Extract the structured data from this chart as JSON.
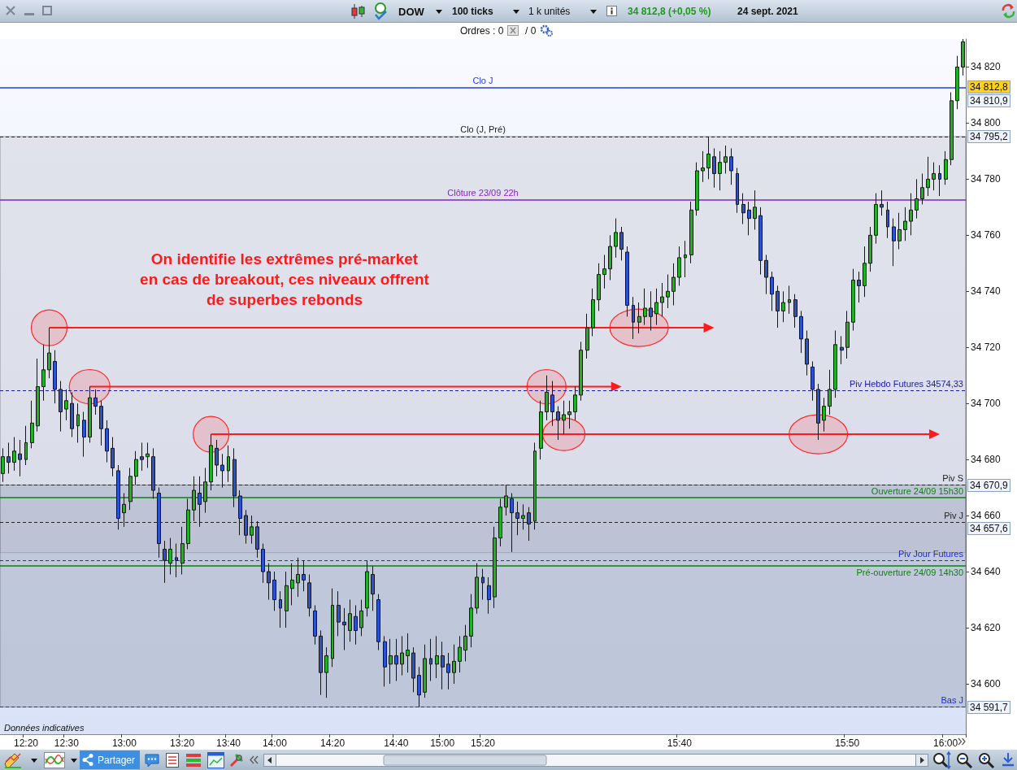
{
  "chart_data": {
    "type": "candlestick",
    "title": "DOW",
    "categories": [
      null,
      null,
      null,
      null,
      "12:20",
      null,
      null,
      null,
      null,
      null,
      null,
      "12:30",
      null,
      null,
      null,
      null,
      null,
      null,
      null,
      null,
      null,
      "13:00",
      null,
      null,
      null,
      null,
      null,
      null,
      null,
      null,
      null,
      "13:20",
      null,
      null,
      null,
      null,
      null,
      null,
      null,
      "13:40",
      null,
      null,
      null,
      null,
      null,
      null,
      null,
      "14:00",
      null,
      null,
      null,
      null,
      null,
      null,
      null,
      null,
      null,
      "14:20",
      null,
      null,
      null,
      null,
      null,
      null,
      null,
      null,
      null,
      null,
      "14:40",
      null,
      null,
      null,
      null,
      null,
      null,
      null,
      "15:00",
      null,
      null,
      null,
      null,
      null,
      null,
      "15:20",
      null,
      null,
      null,
      null,
      null,
      null,
      null,
      null,
      null,
      null,
      null,
      null,
      null,
      null,
      null,
      null,
      null,
      null,
      null,
      null,
      null,
      null,
      null,
      null,
      null,
      null,
      null,
      null,
      null,
      null,
      null,
      null,
      null,
      "15:40",
      null,
      null,
      null,
      null,
      null,
      null,
      null,
      null,
      null,
      null,
      null,
      null,
      null,
      null,
      null,
      null,
      null,
      null,
      null,
      null,
      null,
      null,
      null,
      null,
      null,
      null,
      null,
      null,
      "15:50",
      null,
      null,
      null,
      null,
      null,
      null,
      null,
      null,
      null,
      null,
      null,
      null,
      null,
      null,
      null,
      null,
      "16:00",
      null,
      null,
      null
    ],
    "ohlc": [
      [
        34675,
        34684,
        34672,
        34681
      ],
      [
        34681,
        34686,
        34675,
        34679
      ],
      [
        34679,
        34688,
        34676,
        34683
      ],
      [
        34682,
        34687,
        34674,
        34680
      ],
      [
        34680,
        34692,
        34678,
        34686
      ],
      [
        34686,
        34701,
        34684,
        34693
      ],
      [
        34692,
        34716,
        34690,
        34706
      ],
      [
        34706,
        34721,
        34701,
        34712
      ],
      [
        34712,
        34727,
        34709,
        34718
      ],
      [
        34715,
        34719,
        34700,
        34705
      ],
      [
        34705,
        34708,
        34690,
        34697
      ],
      [
        34698,
        34705,
        34694,
        34701
      ],
      [
        34700,
        34704,
        34688,
        34691
      ],
      [
        34692,
        34700,
        34686,
        34696
      ],
      [
        34694,
        34697,
        34681,
        34688
      ],
      [
        34688,
        34706,
        34686,
        34702
      ],
      [
        34702,
        34705,
        34696,
        34699
      ],
      [
        34699,
        34701,
        34685,
        34691
      ],
      [
        34691,
        34694,
        34679,
        34683
      ],
      [
        34684,
        34688,
        34674,
        34677
      ],
      [
        34676,
        34678,
        34655,
        34659
      ],
      [
        34661,
        34668,
        34656,
        34664
      ],
      [
        34665,
        34677,
        34662,
        34674
      ],
      [
        34674,
        34683,
        34671,
        34680
      ],
      [
        34681,
        34686,
        34676,
        34680
      ],
      [
        34681,
        34686,
        34677,
        34682
      ],
      [
        34681,
        34684,
        34666,
        34669
      ],
      [
        34668,
        34670,
        34645,
        34650
      ],
      [
        34648,
        34651,
        34636,
        34644
      ],
      [
        34643,
        34652,
        34639,
        34648
      ],
      [
        34645,
        34650,
        34638,
        34644
      ],
      [
        34643,
        34656,
        34639,
        34650
      ],
      [
        34650,
        34666,
        34648,
        34662
      ],
      [
        34662,
        34674,
        34658,
        34669
      ],
      [
        34668,
        34674,
        34656,
        34664
      ],
      [
        34665,
        34677,
        34661,
        34672
      ],
      [
        34672,
        34689,
        34669,
        34685
      ],
      [
        34684,
        34687,
        34674,
        34678
      ],
      [
        34678,
        34682,
        34670,
        34676
      ],
      [
        34676,
        34685,
        34672,
        34681
      ],
      [
        34680,
        34684,
        34663,
        34667
      ],
      [
        34667,
        34669,
        34653,
        34659
      ],
      [
        34660,
        34662,
        34650,
        34653
      ],
      [
        34653,
        34660,
        34650,
        34656
      ],
      [
        34656,
        34658,
        34645,
        34648
      ],
      [
        34648,
        34650,
        34636,
        34640
      ],
      [
        34640,
        34643,
        34630,
        34636
      ],
      [
        34637,
        34640,
        34626,
        34630
      ],
      [
        34630,
        34633,
        34620,
        34627
      ],
      [
        34626,
        34640,
        34620,
        34635
      ],
      [
        34634,
        34643,
        34628,
        34637
      ],
      [
        34636,
        34645,
        34631,
        34639
      ],
      [
        34639,
        34644,
        34633,
        34637
      ],
      [
        34636,
        34639,
        34624,
        34627
      ],
      [
        34626,
        34628,
        34614,
        34617
      ],
      [
        34617,
        34619,
        34596,
        34604
      ],
      [
        34604,
        34613,
        34595,
        34610
      ],
      [
        34609,
        34634,
        34606,
        34628
      ],
      [
        34628,
        34633,
        34617,
        34622
      ],
      [
        34622,
        34627,
        34612,
        34621
      ],
      [
        34619,
        34630,
        34615,
        34625
      ],
      [
        34624,
        34628,
        34614,
        34619
      ],
      [
        34620,
        34630,
        34617,
        34626
      ],
      [
        34627,
        34644,
        34624,
        34640
      ],
      [
        34639,
        34642,
        34626,
        34632
      ],
      [
        34630,
        34632,
        34612,
        34615
      ],
      [
        34615,
        34617,
        34599,
        34606
      ],
      [
        34607,
        34616,
        34600,
        34610
      ],
      [
        34610,
        34616,
        34601,
        34607
      ],
      [
        34607,
        34617,
        34603,
        34611
      ],
      [
        34610,
        34618,
        34604,
        34612
      ],
      [
        34611,
        34613,
        34597,
        34602
      ],
      [
        34603,
        34606,
        34591.7,
        34596
      ],
      [
        34597,
        34614,
        34595,
        34609
      ],
      [
        34609,
        34616,
        34601,
        34607
      ],
      [
        34607,
        34617,
        34602,
        34610
      ],
      [
        34610,
        34615,
        34598,
        34606
      ],
      [
        34607,
        34611,
        34598,
        34604
      ],
      [
        34604,
        34614,
        34600,
        34608
      ],
      [
        34608,
        34617,
        34604,
        34613
      ],
      [
        34612,
        34621,
        34608,
        34617
      ],
      [
        34617,
        34632,
        34613,
        34627
      ],
      [
        34627,
        34643,
        34625,
        34638
      ],
      [
        34638,
        34641,
        34630,
        34636
      ],
      [
        34635,
        34638,
        34625,
        34630
      ],
      [
        34631,
        34656,
        34627,
        34652
      ],
      [
        34652,
        34666,
        34649,
        34663
      ],
      [
        34663,
        34670.9,
        34660,
        34667
      ],
      [
        34666,
        34668,
        34647,
        34661
      ],
      [
        34661,
        34665,
        34653,
        34659
      ],
      [
        34659,
        34664,
        34655,
        34660
      ],
      [
        34661,
        34663,
        34651,
        34657
      ],
      [
        34658,
        34686,
        34655,
        34683
      ],
      [
        34684,
        34701,
        34680,
        34697
      ],
      [
        34697,
        34710,
        34694,
        34704
      ],
      [
        34703,
        34708,
        34692,
        34697
      ],
      [
        34697,
        34699,
        34687,
        34694
      ],
      [
        34694,
        34701,
        34689,
        34696
      ],
      [
        34696,
        34701,
        34691,
        34697
      ],
      [
        34697,
        34706,
        34694,
        34703
      ],
      [
        34703,
        34722,
        34701,
        34719
      ],
      [
        34719,
        34732,
        34716,
        34727
      ],
      [
        34727,
        34741,
        34724,
        34737
      ],
      [
        34737,
        34750,
        34733,
        34746
      ],
      [
        34746,
        34753,
        34741,
        34748
      ],
      [
        34748,
        34760,
        34744,
        34756
      ],
      [
        34756,
        34766,
        34752,
        34761
      ],
      [
        34761,
        34763,
        34751,
        34755
      ],
      [
        34754,
        34756,
        34731,
        34735
      ],
      [
        34735,
        34738,
        34723,
        34729
      ],
      [
        34729,
        34736,
        34725,
        34731
      ],
      [
        34731,
        34741,
        34728,
        34734
      ],
      [
        34734,
        34740,
        34726,
        34731
      ],
      [
        34732,
        34741,
        34728,
        34736
      ],
      [
        34736,
        34743,
        34731,
        34738
      ],
      [
        34738,
        34746,
        34734,
        34740
      ],
      [
        34740,
        34750,
        34735,
        34745
      ],
      [
        34745,
        34756,
        34742,
        34752
      ],
      [
        34752,
        34758,
        34745,
        34753
      ],
      [
        34753,
        34772,
        34750,
        34769
      ],
      [
        34769,
        34786,
        34767,
        34783
      ],
      [
        34783,
        34790,
        34779,
        34784
      ],
      [
        34784,
        34795.2,
        34780,
        34789
      ],
      [
        34788,
        34791,
        34777,
        34782
      ],
      [
        34782,
        34790,
        34776,
        34786
      ],
      [
        34786,
        34792,
        34782,
        34788
      ],
      [
        34788,
        34791,
        34778,
        34783
      ],
      [
        34782,
        34784,
        34768,
        34771
      ],
      [
        34771,
        34775,
        34764,
        34768
      ],
      [
        34769,
        34772,
        34760,
        34766
      ],
      [
        34766,
        34776,
        34762,
        34770
      ],
      [
        34767,
        34770,
        34746,
        34751
      ],
      [
        34751,
        34753,
        34739,
        34745
      ],
      [
        34745,
        34747,
        34733,
        34739
      ],
      [
        34740,
        34742,
        34727,
        34733
      ],
      [
        34733,
        34740,
        34729,
        34736
      ],
      [
        34736,
        34742,
        34732,
        34737
      ],
      [
        34737,
        34739,
        34727,
        34731
      ],
      [
        34731,
        34733,
        34718,
        34723
      ],
      [
        34723,
        34726,
        34710,
        34714
      ],
      [
        34713,
        34715,
        34701,
        34705
      ],
      [
        34705,
        34707,
        34687,
        34693
      ],
      [
        34694,
        34702,
        34690,
        34699
      ],
      [
        34699,
        34712,
        34696,
        34705
      ],
      [
        34705,
        34726,
        34702,
        34721
      ],
      [
        34720,
        34724,
        34714,
        34719
      ],
      [
        34720,
        34733,
        34716,
        34729
      ],
      [
        34729,
        34748,
        34726,
        34744
      ],
      [
        34744,
        34747,
        34736,
        34742
      ],
      [
        34742,
        34756,
        34738,
        34750
      ],
      [
        34750,
        34763,
        34747,
        34760
      ],
      [
        34760,
        34775,
        34757,
        34771
      ],
      [
        34771,
        34776,
        34767,
        34770
      ],
      [
        34769,
        34772,
        34759,
        34763
      ],
      [
        34763,
        34766,
        34749,
        34758
      ],
      [
        34758,
        34768,
        34755,
        34762
      ],
      [
        34762,
        34770,
        34758,
        34765
      ],
      [
        34765,
        34775,
        34760,
        34769
      ],
      [
        34769,
        34780,
        34766,
        34773
      ],
      [
        34773,
        34782,
        34771,
        34777
      ],
      [
        34777,
        34788,
        34774,
        34780
      ],
      [
        34780,
        34786,
        34776,
        34782
      ],
      [
        34782,
        34785,
        34774,
        34780
      ],
      [
        34780,
        34790,
        34778,
        34787
      ],
      [
        34787,
        34811,
        34785,
        34808
      ],
      [
        34808,
        34824,
        34805,
        34820
      ],
      [
        34820,
        34830,
        34817,
        34829
      ]
    ],
    "colors": [
      "#1eb41e",
      "#2a52d6",
      "#1eb41e",
      "#2a52d6",
      "#1eb41e",
      "#1eb41e",
      "#1eb41e",
      "#1eb41e",
      "#1eb41e",
      "#2a52d6",
      "#2a52d6",
      "#1eb41e",
      "#2a52d6",
      "#1eb41e",
      "#2a52d6",
      "#1eb41e",
      "#2a52d6",
      "#2a52d6",
      "#2a52d6",
      "#2a52d6",
      "#2a52d6",
      "#1eb41e",
      "#1eb41e",
      "#1eb41e",
      "#2a52d6",
      "#1eb41e",
      "#2a52d6",
      "#2a52d6",
      "#2a52d6",
      "#1eb41e",
      "#2a52d6",
      "#1eb41e",
      "#1eb41e",
      "#1eb41e",
      "#2a52d6",
      "#1eb41e",
      "#1eb41e",
      "#2a52d6",
      "#2a52d6",
      "#1eb41e",
      "#2a52d6",
      "#2a52d6",
      "#2a52d6",
      "#1eb41e",
      "#2a52d6",
      "#2a52d6",
      "#2a52d6",
      "#2a52d6",
      "#2a52d6",
      "#1eb41e",
      "#1eb41e",
      "#1eb41e",
      "#2a52d6",
      "#2a52d6",
      "#2a52d6",
      "#2a52d6",
      "#1eb41e",
      "#1eb41e",
      "#2a52d6",
      "#2a52d6",
      "#1eb41e",
      "#2a52d6",
      "#1eb41e",
      "#1eb41e",
      "#2a52d6",
      "#2a52d6",
      "#2a52d6",
      "#1eb41e",
      "#2a52d6",
      "#1eb41e",
      "#1eb41e",
      "#2a52d6",
      "#2a52d6",
      "#1eb41e",
      "#2a52d6",
      "#1eb41e",
      "#2a52d6",
      "#2a52d6",
      "#1eb41e",
      "#1eb41e",
      "#1eb41e",
      "#1eb41e",
      "#1eb41e",
      "#2a52d6",
      "#2a52d6",
      "#1eb41e",
      "#1eb41e",
      "#1eb41e",
      "#2a52d6",
      "#2a52d6",
      "#1eb41e",
      "#2a52d6",
      "#1eb41e",
      "#1eb41e",
      "#1eb41e",
      "#2a52d6",
      "#2a52d6",
      "#1eb41e",
      "#1eb41e",
      "#1eb41e",
      "#1eb41e",
      "#1eb41e",
      "#1eb41e",
      "#1eb41e",
      "#1eb41e",
      "#1eb41e",
      "#1eb41e",
      "#2a52d6",
      "#2a52d6",
      "#2a52d6",
      "#1eb41e",
      "#1eb41e",
      "#2a52d6",
      "#1eb41e",
      "#1eb41e",
      "#1eb41e",
      "#1eb41e",
      "#1eb41e",
      "#1eb41e",
      "#1eb41e",
      "#1eb41e",
      "#1eb41e",
      "#1eb41e",
      "#2a52d6",
      "#1eb41e",
      "#1eb41e",
      "#2a52d6",
      "#2a52d6",
      "#2a52d6",
      "#2a52d6",
      "#1eb41e",
      "#2a52d6",
      "#2a52d6",
      "#2a52d6",
      "#2a52d6",
      "#1eb41e",
      "#1eb41e",
      "#2a52d6",
      "#2a52d6",
      "#2a52d6",
      "#2a52d6",
      "#2a52d6",
      "#1eb41e",
      "#1eb41e",
      "#1eb41e",
      "#2a52d6",
      "#1eb41e",
      "#1eb41e",
      "#2a52d6",
      "#1eb41e",
      "#1eb41e",
      "#1eb41e",
      "#2a52d6",
      "#2a52d6",
      "#2a52d6",
      "#1eb41e",
      "#1eb41e",
      "#1eb41e",
      "#1eb41e",
      "#1eb41e",
      "#1eb41e",
      "#1eb41e",
      "#2a52d6",
      "#1eb41e",
      "#1eb41e",
      "#1eb41e",
      "#1eb41e"
    ],
    "ylim": [
      34582,
      34830
    ],
    "yticks": [
      {
        "value": 34600,
        "label": "34 600"
      },
      {
        "value": 34620,
        "label": "34 620"
      },
      {
        "value": 34640,
        "label": "34 640"
      },
      {
        "value": 34660,
        "label": "34 660"
      },
      {
        "value": 34680,
        "label": "34 680"
      },
      {
        "value": 34700,
        "label": "34 700"
      },
      {
        "value": 34720,
        "label": "34 720"
      },
      {
        "value": 34740,
        "label": "34 740"
      },
      {
        "value": 34760,
        "label": "34 760"
      },
      {
        "value": 34780,
        "label": "34 780"
      },
      {
        "value": 34800,
        "label": "34 800"
      },
      {
        "value": 34820,
        "label": "34 820"
      }
    ],
    "ref_lines": [
      {
        "axis": "y",
        "value": 34812.8,
        "label": "Clo J",
        "color": "#1f3fe6",
        "line_style": "solid"
      },
      {
        "axis": "y",
        "value": 34795.2,
        "label": "Clo (J, Pré)",
        "color": "#222222",
        "line_style": "dashed"
      },
      {
        "axis": "y",
        "value": 34772.7,
        "label": "Clôture 23/09 22h",
        "color": "#8a1fc8",
        "line_style": "solid"
      },
      {
        "axis": "y",
        "value": 34704.5,
        "label": "Piv Hebdo Futures 34574,33",
        "color": "#1c1ca0",
        "line_style": "dashed"
      },
      {
        "axis": "y",
        "value": 34670.9,
        "label": "Piv S",
        "color": "#222222",
        "line_style": "dashed"
      },
      {
        "axis": "y",
        "value": 34666.4,
        "label": "Ouverture 24/09 15h30",
        "color": "#0f7f0f",
        "line_style": "solid"
      },
      {
        "axis": "y",
        "value": 34657.6,
        "label": "Piv J",
        "color": "#222222",
        "line_style": "dashed"
      },
      {
        "axis": "y",
        "value": 34643.9,
        "label": "Piv Jour Futures",
        "color": "#1c2ad0",
        "line_style": "dashed"
      },
      {
        "axis": "y",
        "value": 34642.2,
        "label": "Pré-ouverture 24/09 14h30",
        "color": "#0f7f0f",
        "line_style": "solid"
      },
      {
        "axis": "y",
        "value": 34591.7,
        "label": "Bas J",
        "color": "#1c2ad0",
        "line_style": "dashed"
      }
    ],
    "bands": [
      {
        "axis": "y",
        "from": 34646.8,
        "to": 34795.2,
        "color": "#d4d6df"
      },
      {
        "axis": "y",
        "from": 34591.7,
        "to": 34670.9,
        "color": "#aab2c6"
      }
    ],
    "annotations": [
      "On identifie les extrêmes pré-market\nen cas de breakout, ces niveaux offrent\nde superbes rebonds",
      "100 ticks",
      "1 k unités",
      "34 812,8 (+0,05 %)",
      "24 sept. 2021",
      "Ordres : 0",
      "/ 0",
      "Données indicatives",
      "Partager",
      "34 812,8",
      "34 810,9",
      "34 795,2",
      "34 670,9",
      "34 657,6",
      "34 591,7"
    ]
  }
}
